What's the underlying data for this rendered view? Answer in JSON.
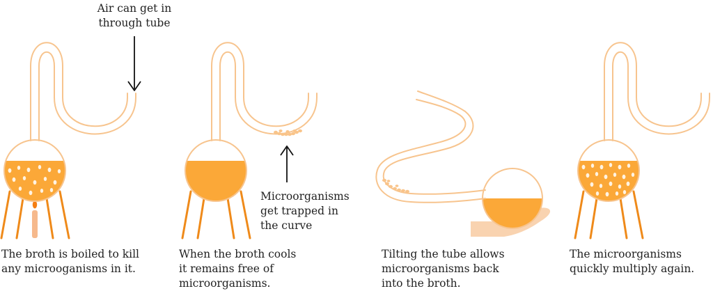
{
  "annotations": {
    "air_tube": [
      "Air can get in",
      "through tube"
    ],
    "trapped": [
      "Microorganisms",
      "get trapped in",
      "the curve"
    ]
  },
  "captions": [
    [
      "The broth is boiled to kill",
      "any microoganisms in it."
    ],
    [
      "When the broth cools",
      "it remains free of",
      "microorganisms."
    ],
    [
      "Tilting the tube allows",
      "microorganisms back",
      "into the broth."
    ],
    [
      "The microorganisms",
      "quickly multiply again."
    ]
  ],
  "colors": {
    "tube_stroke": "#F7C48E",
    "broth": "#FBA838",
    "stand": "#EF8A1A",
    "candle": "#F6B98C",
    "flame": "#F57E12",
    "hand": "#F9D3B0",
    "arrow": "#111111"
  }
}
